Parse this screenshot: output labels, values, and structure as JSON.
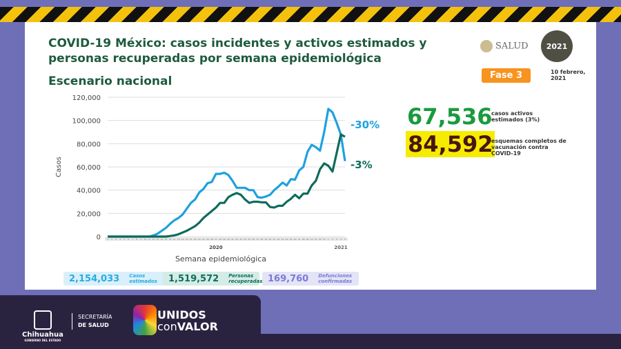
{
  "header": {
    "title": "COVID-19 México: casos incidentes y activos estimados y personas recuperadas por semana epidemiológica",
    "subtitle": "Escenario nacional",
    "salud": "SALUD",
    "seal": "2021",
    "phase": "Fase 3",
    "date": "10 febrero, 2021"
  },
  "stats": {
    "active": "67,536",
    "active_label": "casos activos estimados (3%)",
    "vaccine": "84,592",
    "vaccine_label": "esquemas completos de vacunación contra COVID-19"
  },
  "summary": [
    {
      "value": "2,154,033",
      "label": "Casos estimados",
      "color": "#28aae1"
    },
    {
      "value": "1,519,572",
      "label": "Personas recuperadas",
      "color": "#0f6b5b"
    },
    {
      "value": "169,760",
      "label": "Defunciones confirmadas",
      "color": "#7a7ad6"
    }
  ],
  "footer": {
    "state": "Chihuahua",
    "gov": "GOBIERNO DEL ESTADO",
    "dept1": "SECRETARÍA",
    "dept2": "DE SALUD",
    "brand1": "UNIDOS",
    "brand2a": "con",
    "brand2b": "VALOR"
  },
  "chart_data": {
    "type": "line",
    "xlabel": "Semana epidemiológica",
    "ylabel": "Casos",
    "ylim": [
      0,
      120000
    ],
    "yticks": [
      "0",
      "20,000",
      "40,000",
      "60,000",
      "80,000",
      "100,000",
      "120,000"
    ],
    "year_labels": [
      "2020",
      "2021"
    ],
    "grid": true,
    "series": [
      {
        "color": "#1ea0e0",
        "annotation": "-30%",
        "values": [
          0,
          0,
          0,
          0,
          0,
          0,
          0,
          0,
          0,
          0,
          0,
          1000,
          2500,
          5000,
          7500,
          11000,
          14000,
          16000,
          19000,
          24000,
          29000,
          32000,
          38000,
          41000,
          46000,
          47000,
          54000,
          54000,
          55000,
          53000,
          48000,
          42000,
          42000,
          42000,
          40000,
          40000,
          34000,
          33500,
          34500,
          36000,
          40000,
          43000,
          46500,
          44000,
          49500,
          49000,
          57000,
          60000,
          73000,
          79000,
          77000,
          74000,
          90000,
          110000,
          107000,
          98000,
          88000,
          65000
        ]
      },
      {
        "color": "#0f6b5b",
        "annotation": "-3%",
        "values": [
          0,
          0,
          0,
          0,
          0,
          0,
          0,
          0,
          0,
          0,
          0,
          0,
          0,
          0,
          0,
          500,
          1000,
          2000,
          3500,
          5000,
          7000,
          9000,
          12000,
          16000,
          19000,
          22000,
          25000,
          29000,
          29000,
          34000,
          36000,
          37500,
          36000,
          32000,
          29000,
          30000,
          30000,
          29500,
          29500,
          25500,
          25000,
          26500,
          26500,
          30000,
          32500,
          36000,
          33000,
          37000,
          37000,
          44000,
          48000,
          58000,
          63000,
          61000,
          56000,
          72000,
          88000,
          86000
        ]
      }
    ]
  }
}
